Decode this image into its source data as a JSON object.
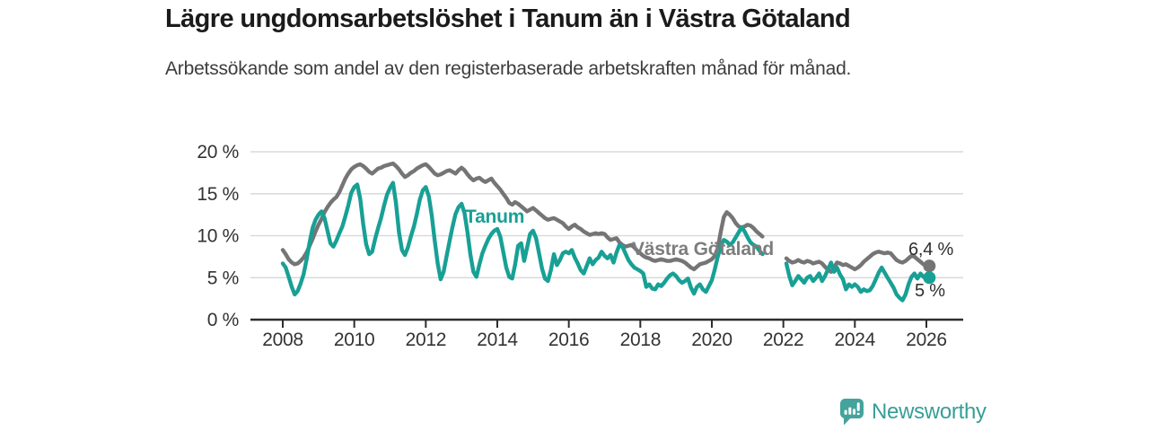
{
  "title": "Lägre ungdomsarbetslöshet i Tanum än i Västra Götaland",
  "subtitle": "Arbetssökande som andel av den registerbaserade arbetskraften månad för månad.",
  "branding": {
    "logo_text": "Newsworthy",
    "logo_icon": "bar-chart-speech-bubble-icon",
    "logo_color": "#44a39c"
  },
  "colors": {
    "tanum_line": "#18a095",
    "vastra_gotaland_line": "#757575",
    "axis": "#2d2d2d",
    "grid": "#dadada",
    "title_text": "#1b1b1b",
    "body_text": "#3d3d3d"
  },
  "chart_data": {
    "type": "line",
    "title": "Lägre ungdomsarbetslöshet i Tanum än i Västra Götaland",
    "subtitle": "Arbetssökande som andel av den registerbaserade arbetskraften månad för månad.",
    "frequency": "monthly",
    "x_start": 2008.0,
    "xlim": [
      2007.1,
      2027.0
    ],
    "ylim": [
      0,
      20
    ],
    "grid": true,
    "x_ticks": [
      2008,
      2010,
      2012,
      2014,
      2016,
      2018,
      2020,
      2022,
      2024,
      2026
    ],
    "y_ticks": [
      0,
      5,
      10,
      15,
      20
    ],
    "y_tick_labels": [
      "0 %",
      "5 %",
      "10 %",
      "15 %",
      "20 %"
    ],
    "data_gap": "mid-2021 to early 2022 (series break, no line drawn)",
    "series": [
      {
        "name": "Tanum",
        "slug": "tanum",
        "color": "#18a095",
        "end_label": "5 %",
        "end_value": 5.0,
        "values": [
          6.7,
          6.2,
          5.1,
          3.9,
          3.0,
          3.4,
          4.3,
          5.4,
          7.2,
          9.2,
          10.9,
          11.9,
          12.5,
          12.9,
          12.1,
          10.6,
          9.1,
          8.7,
          9.4,
          10.3,
          11.1,
          12.3,
          13.6,
          15.1,
          15.8,
          16.1,
          14.4,
          11.4,
          9.0,
          7.8,
          8.1,
          9.6,
          10.9,
          12.1,
          13.6,
          14.9,
          15.7,
          16.3,
          13.9,
          10.4,
          8.3,
          7.7,
          8.6,
          9.9,
          11.1,
          12.6,
          14.3,
          15.4,
          15.8,
          14.7,
          12.4,
          9.4,
          6.7,
          4.8,
          5.7,
          7.6,
          9.4,
          11.1,
          12.6,
          13.4,
          13.8,
          12.7,
          10.4,
          7.7,
          5.7,
          5.1,
          6.6,
          7.9,
          8.8,
          9.6,
          10.2,
          10.6,
          10.8,
          9.9,
          8.1,
          6.2,
          5.1,
          4.9,
          6.6,
          8.8,
          9.1,
          7.0,
          8.6,
          10.2,
          10.6,
          9.7,
          7.9,
          6.1,
          4.9,
          4.6,
          5.9,
          7.8,
          6.5,
          7.1,
          7.9,
          8.1,
          7.9,
          8.3,
          7.4,
          6.7,
          5.9,
          5.5,
          6.4,
          7.3,
          6.6,
          7.1,
          7.4,
          8.1,
          7.6,
          7.3,
          7.7,
          6.8,
          8.0,
          8.9,
          8.7,
          7.9,
          7.1,
          6.6,
          6.2,
          6.0,
          5.8,
          5.5,
          3.9,
          4.2,
          3.7,
          3.6,
          4.2,
          4.0,
          4.4,
          4.9,
          5.3,
          5.5,
          5.2,
          4.7,
          4.4,
          4.6,
          4.9,
          3.8,
          3.1,
          3.9,
          4.2,
          3.6,
          3.3,
          4.0,
          4.7,
          6.0,
          7.5,
          8.8,
          9.5,
          9.3,
          8.9,
          9.2,
          9.8,
          10.4,
          11.0,
          10.5,
          9.8,
          9.2,
          8.9,
          8.7,
          8.2,
          7.8,
          null,
          null,
          null,
          null,
          null,
          null,
          null,
          6.7,
          5.2,
          4.1,
          4.6,
          5.2,
          4.8,
          4.4,
          5.0,
          5.2,
          4.6,
          5.0,
          5.5,
          4.6,
          5.2,
          6.0,
          6.8,
          5.7,
          6.2,
          5.4,
          4.8,
          3.6,
          4.2,
          3.9,
          4.2,
          3.9,
          3.3,
          3.6,
          3.4,
          3.5,
          4.0,
          4.8,
          5.6,
          6.2,
          5.6,
          5.0,
          4.4,
          3.8,
          3.0,
          2.6,
          2.3,
          3.0,
          4.2,
          5.1,
          5.5,
          4.9,
          5.5,
          5.1,
          4.9,
          5.0
        ]
      },
      {
        "name": "Västra Götaland",
        "slug": "vastra-gotaland",
        "color": "#757575",
        "end_label": "6,4 %",
        "end_value": 6.4,
        "values": [
          8.3,
          7.8,
          7.2,
          6.8,
          6.6,
          6.7,
          7.0,
          7.4,
          8.0,
          8.8,
          9.6,
          10.5,
          11.3,
          12.0,
          12.8,
          13.4,
          13.9,
          14.3,
          14.6,
          15.2,
          16.0,
          16.8,
          17.4,
          17.9,
          18.2,
          18.4,
          18.5,
          18.3,
          18.0,
          17.6,
          17.4,
          17.7,
          18.0,
          18.1,
          18.3,
          18.4,
          18.5,
          18.6,
          18.3,
          17.9,
          17.4,
          17.0,
          17.2,
          17.5,
          17.7,
          18.0,
          18.2,
          18.4,
          18.5,
          18.2,
          17.8,
          17.4,
          17.2,
          17.3,
          17.5,
          17.7,
          17.8,
          17.6,
          17.4,
          17.8,
          18.1,
          17.8,
          17.3,
          16.9,
          16.6,
          16.8,
          16.9,
          16.6,
          16.4,
          16.6,
          16.8,
          16.3,
          15.9,
          15.5,
          15.0,
          14.5,
          13.9,
          13.7,
          14.0,
          13.8,
          13.5,
          13.2,
          12.9,
          13.1,
          13.3,
          13.0,
          12.7,
          12.4,
          12.1,
          11.9,
          12.0,
          12.1,
          11.9,
          11.7,
          11.5,
          11.1,
          10.8,
          11.1,
          11.3,
          11.0,
          10.8,
          10.5,
          10.3,
          10.1,
          10.2,
          10.3,
          10.2,
          10.3,
          10.2,
          9.8,
          9.5,
          9.6,
          9.7,
          9.2,
          8.9,
          8.7,
          8.8,
          8.9,
          8.6,
          8.2,
          7.9,
          7.6,
          7.4,
          7.3,
          7.1,
          7.0,
          7.1,
          7.2,
          7.1,
          7.0,
          7.0,
          7.1,
          7.2,
          7.1,
          7.0,
          6.8,
          6.5,
          6.2,
          6.0,
          6.3,
          6.6,
          6.7,
          6.8,
          7.0,
          7.2,
          7.6,
          8.5,
          10.5,
          12.2,
          12.8,
          12.5,
          12.1,
          11.5,
          11.1,
          11.0,
          11.1,
          11.3,
          11.2,
          10.9,
          10.5,
          10.2,
          9.9,
          null,
          null,
          null,
          null,
          null,
          null,
          null,
          7.3,
          7.0,
          6.8,
          6.9,
          7.1,
          6.9,
          6.8,
          7.0,
          6.9,
          6.7,
          6.8,
          6.9,
          6.7,
          6.3,
          5.9,
          5.7,
          6.2,
          6.8,
          6.7,
          6.5,
          6.6,
          6.4,
          6.2,
          6.0,
          6.2,
          6.5,
          6.9,
          7.2,
          7.5,
          7.8,
          8.0,
          8.1,
          8.0,
          7.9,
          8.0,
          7.9,
          7.5,
          7.1,
          6.9,
          6.8,
          7.0,
          7.3,
          7.6,
          7.5,
          7.2,
          6.9,
          6.6,
          6.5,
          6.4
        ]
      }
    ]
  }
}
